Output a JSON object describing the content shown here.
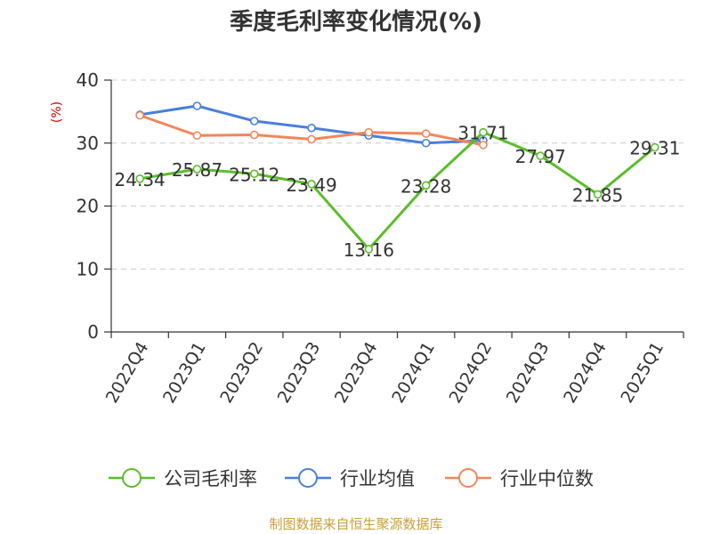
{
  "chart_data": {
    "type": "line",
    "title": "季度毛利率变化情况(%)",
    "ylabel": "(%)",
    "xlabel": "",
    "categories": [
      "2022Q4",
      "2023Q1",
      "2023Q2",
      "2023Q3",
      "2023Q4",
      "2024Q1",
      "2024Q2",
      "2024Q3",
      "2024Q4",
      "2025Q1"
    ],
    "yticks": [
      0,
      10,
      20,
      30,
      40
    ],
    "ylim": [
      0,
      40
    ],
    "grid": true,
    "legend_position": "bottom",
    "series": [
      {
        "name": "公司毛利率",
        "color": "#5bbd2b",
        "values": [
          24.34,
          25.87,
          25.12,
          23.49,
          13.16,
          23.28,
          31.71,
          27.97,
          21.85,
          29.31
        ],
        "labels": [
          "24.34",
          "25.87",
          "25.12",
          "23.49",
          "13.16",
          "23.28",
          "31.71",
          "27.97",
          "21.85",
          "29.31"
        ]
      },
      {
        "name": "行业均值",
        "color": "#4a7fdc",
        "values": [
          34.5,
          35.9,
          33.5,
          32.4,
          31.2,
          30.0,
          30.4,
          null,
          null,
          null
        ]
      },
      {
        "name": "行业中位数",
        "color": "#f0875a",
        "values": [
          34.4,
          31.2,
          31.3,
          30.6,
          31.7,
          31.5,
          29.7,
          null,
          null,
          null
        ]
      }
    ]
  },
  "footer": "制图数据来自恒生聚源数据库"
}
